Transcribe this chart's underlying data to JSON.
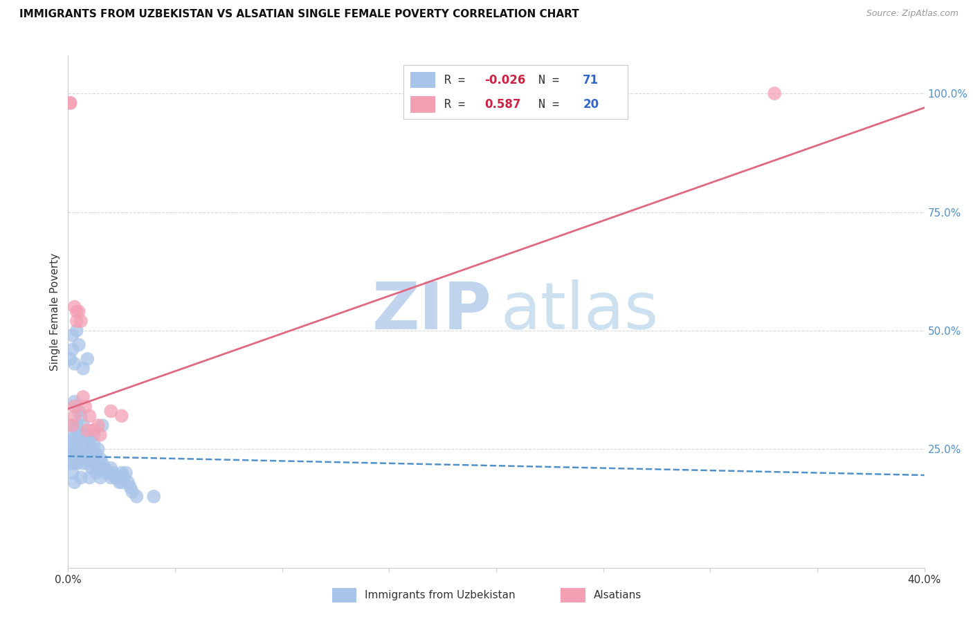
{
  "title": "IMMIGRANTS FROM UZBEKISTAN VS ALSATIAN SINGLE FEMALE POVERTY CORRELATION CHART",
  "source": "Source: ZipAtlas.com",
  "ylabel": "Single Female Poverty",
  "xlim": [
    0.0,
    0.4
  ],
  "ylim": [
    0.0,
    1.08
  ],
  "xticks": [
    0.0,
    0.05,
    0.1,
    0.15,
    0.2,
    0.25,
    0.3,
    0.35,
    0.4
  ],
  "xtick_labels": [
    "0.0%",
    "",
    "",
    "",
    "",
    "",
    "",
    "",
    "40.0%"
  ],
  "yticks_right": [
    0.25,
    0.5,
    0.75,
    1.0
  ],
  "ytick_labels_right": [
    "25.0%",
    "50.0%",
    "75.0%",
    "100.0%"
  ],
  "legend_blue_r": "-0.026",
  "legend_blue_n": "71",
  "legend_pink_r": "0.587",
  "legend_pink_n": "20",
  "blue_color": "#a8c4e8",
  "pink_color": "#f4a0b4",
  "blue_line_color": "#5090c8",
  "pink_line_color": "#e06880",
  "grid_color": "#d8d8d8",
  "blue_scatter_x": [
    0.001,
    0.001,
    0.001,
    0.002,
    0.002,
    0.002,
    0.002,
    0.003,
    0.003,
    0.003,
    0.003,
    0.003,
    0.004,
    0.004,
    0.004,
    0.005,
    0.005,
    0.005,
    0.006,
    0.006,
    0.006,
    0.006,
    0.007,
    0.007,
    0.007,
    0.008,
    0.008,
    0.009,
    0.009,
    0.01,
    0.01,
    0.01,
    0.011,
    0.011,
    0.012,
    0.012,
    0.013,
    0.013,
    0.014,
    0.014,
    0.015,
    0.015,
    0.016,
    0.017,
    0.018,
    0.019,
    0.02,
    0.02,
    0.021,
    0.022,
    0.023,
    0.024,
    0.025,
    0.025,
    0.026,
    0.027,
    0.028,
    0.029,
    0.03,
    0.032,
    0.001,
    0.002,
    0.002,
    0.003,
    0.004,
    0.005,
    0.007,
    0.009,
    0.012,
    0.016,
    0.04
  ],
  "blue_scatter_y": [
    0.26,
    0.24,
    0.22,
    0.3,
    0.27,
    0.24,
    0.2,
    0.35,
    0.28,
    0.25,
    0.22,
    0.18,
    0.3,
    0.26,
    0.22,
    0.33,
    0.28,
    0.23,
    0.32,
    0.28,
    0.24,
    0.19,
    0.3,
    0.26,
    0.22,
    0.28,
    0.24,
    0.26,
    0.22,
    0.27,
    0.23,
    0.19,
    0.25,
    0.21,
    0.26,
    0.22,
    0.24,
    0.2,
    0.25,
    0.21,
    0.23,
    0.19,
    0.22,
    0.21,
    0.2,
    0.2,
    0.21,
    0.19,
    0.2,
    0.19,
    0.19,
    0.18,
    0.2,
    0.18,
    0.19,
    0.2,
    0.18,
    0.17,
    0.16,
    0.15,
    0.44,
    0.46,
    0.49,
    0.43,
    0.5,
    0.47,
    0.42,
    0.44,
    0.28,
    0.3,
    0.15
  ],
  "pink_scatter_x": [
    0.001,
    0.001,
    0.002,
    0.003,
    0.003,
    0.004,
    0.004,
    0.005,
    0.006,
    0.007,
    0.008,
    0.009,
    0.01,
    0.012,
    0.014,
    0.015,
    0.02,
    0.025,
    0.33,
    0.003
  ],
  "pink_scatter_y": [
    0.98,
    0.98,
    0.3,
    0.34,
    0.32,
    0.54,
    0.52,
    0.54,
    0.52,
    0.36,
    0.34,
    0.29,
    0.32,
    0.29,
    0.3,
    0.28,
    0.33,
    0.32,
    1.0,
    0.55
  ],
  "blue_trend_x": [
    0.0,
    0.4
  ],
  "blue_trend_y": [
    0.235,
    0.195
  ],
  "pink_trend_x": [
    0.0,
    0.4
  ],
  "pink_trend_y": [
    0.335,
    0.97
  ]
}
